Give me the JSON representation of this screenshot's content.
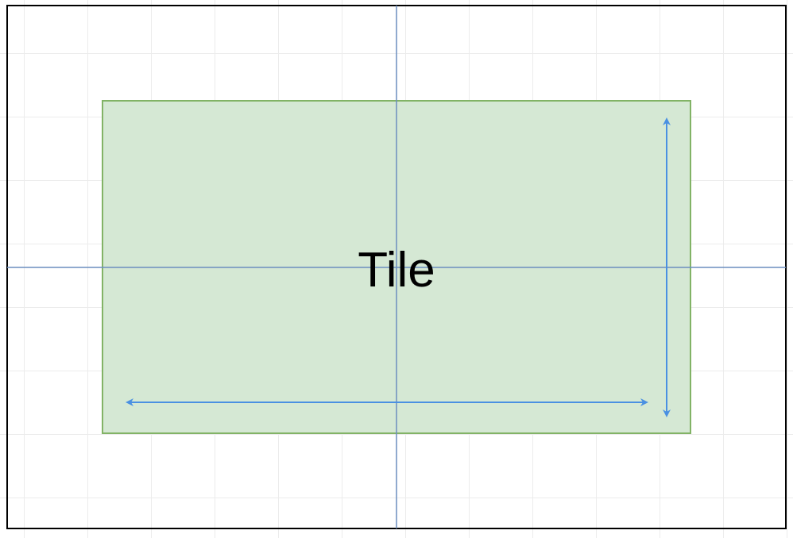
{
  "diagram": {
    "tile_label": "Tile",
    "colors": {
      "frame_stroke": "#000000",
      "tile_fill": "#d5e8d4",
      "tile_stroke": "#82b366",
      "guide_line": "#6c8ebf",
      "arrow": "#4a90e2",
      "label": "#000000"
    },
    "icons": {
      "width_arrow": "double-headed-horizontal-arrow",
      "height_arrow": "double-headed-vertical-arrow"
    }
  }
}
